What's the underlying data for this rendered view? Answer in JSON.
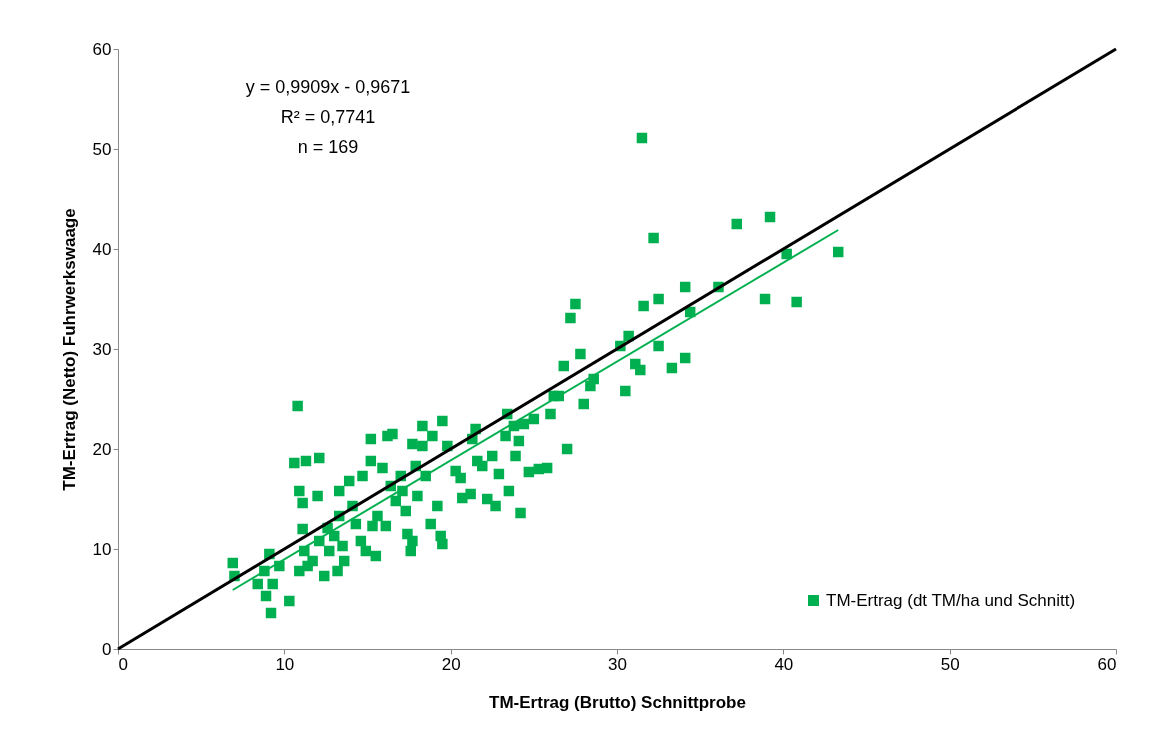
{
  "chart_data": {
    "type": "scatter",
    "xlabel": "TM-Ertrag (Brutto) Schnittprobe",
    "ylabel": "TM-Ertrag (Netto) Fuhrwerkswaage",
    "annotations": [
      "y = 0,9909x - 0,9671",
      "R² = 0,7741",
      "n = 169"
    ],
    "xlim": [
      0,
      60
    ],
    "ylim": [
      0,
      60
    ],
    "xticks": [
      0,
      10,
      20,
      30,
      40,
      50,
      60
    ],
    "yticks": [
      0,
      10,
      20,
      30,
      40,
      50,
      60
    ],
    "grid": false,
    "legend": "bottom right",
    "series": [
      {
        "name": "TM-Ertrag (dt TM/ha und Schnitt)",
        "color": "#00b050",
        "marker": "square",
        "x": [
          6.9,
          7.0,
          8.4,
          8.9,
          9.2,
          9.1,
          8.8,
          9.7,
          9.3,
          10.3,
          10.6,
          10.8,
          11.3,
          10.9,
          11.1,
          11.1,
          11.2,
          10.9,
          11.4,
          11.7,
          12.0,
          12.1,
          12.1,
          12.4,
          12.6,
          12.7,
          13.0,
          13.2,
          13.3,
          13.3,
          13.5,
          13.6,
          13.9,
          14.1,
          14.3,
          14.6,
          14.7,
          14.9,
          15.2,
          15.2,
          15.3,
          15.5,
          15.6,
          15.9,
          16.1,
          16.2,
          16.5,
          16.4,
          16.7,
          17.0,
          17.1,
          17.3,
          17.4,
          17.6,
          17.7,
          17.7,
          17.9,
          18.0,
          18.3,
          18.3,
          18.5,
          18.8,
          18.9,
          19.2,
          19.4,
          19.5,
          19.5,
          19.8,
          20.3,
          20.6,
          20.7,
          21.2,
          21.3,
          21.5,
          21.6,
          21.9,
          22.2,
          22.5,
          22.7,
          22.9,
          23.3,
          23.4,
          23.5,
          23.8,
          23.9,
          24.1,
          24.2,
          24.4,
          24.7,
          25.0,
          25.3,
          25.8,
          26.0,
          26.2,
          26.5,
          26.8,
          27.0,
          27.2,
          27.5,
          27.8,
          28.0,
          28.4,
          28.6,
          30.2,
          30.5,
          30.7,
          31.1,
          31.4,
          31.5,
          31.6,
          32.2,
          32.5,
          32.5,
          33.3,
          34.1,
          34.1,
          34.4,
          36.1,
          37.2,
          39.2,
          38.9,
          40.2,
          40.8,
          43.3
        ],
        "values": [
          8.6,
          7.3,
          6.5,
          5.3,
          3.6,
          9.5,
          7.8,
          8.3,
          6.5,
          4.8,
          18.6,
          24.3,
          18.8,
          15.8,
          14.6,
          12.0,
          9.8,
          7.8,
          8.3,
          8.8,
          15.3,
          19.1,
          10.8,
          7.3,
          12.1,
          9.8,
          11.3,
          7.8,
          15.8,
          13.3,
          10.3,
          8.8,
          16.8,
          14.3,
          12.5,
          10.8,
          17.3,
          9.8,
          21.0,
          18.8,
          12.3,
          9.3,
          13.3,
          18.1,
          12.3,
          21.3,
          21.5,
          16.3,
          14.8,
          17.3,
          15.8,
          13.8,
          11.5,
          9.8,
          10.8,
          20.5,
          18.3,
          15.3,
          22.3,
          20.3,
          17.3,
          12.5,
          21.3,
          14.3,
          11.3,
          10.5,
          22.8,
          20.3,
          17.8,
          17.1,
          15.1,
          15.5,
          21.0,
          22.0,
          18.8,
          18.3,
          15.0,
          19.3,
          14.3,
          17.5,
          21.3,
          23.5,
          15.8,
          22.3,
          19.3,
          20.8,
          13.6,
          22.5,
          17.7,
          23.0,
          18.0,
          18.1,
          23.5,
          25.3,
          25.3,
          28.3,
          20.0,
          33.1,
          34.5,
          29.5,
          24.5,
          26.3,
          27.0,
          30.3,
          25.8,
          31.3,
          28.5,
          27.9,
          51.1,
          34.3,
          41.1,
          35.0,
          30.3,
          28.1,
          36.2,
          29.1,
          33.7,
          36.2,
          42.5,
          43.2,
          35.0,
          39.5,
          34.7,
          39.7
        ]
      },
      {
        "type": "line",
        "color": "#000000",
        "marker": "none",
        "x": [
          0,
          60
        ],
        "values": [
          0,
          60
        ]
      },
      {
        "type": "line",
        "color": "#00b050",
        "marker": "none",
        "x": [
          6.9,
          43.3
        ],
        "values": [
          5.9,
          41.9
        ]
      }
    ]
  }
}
